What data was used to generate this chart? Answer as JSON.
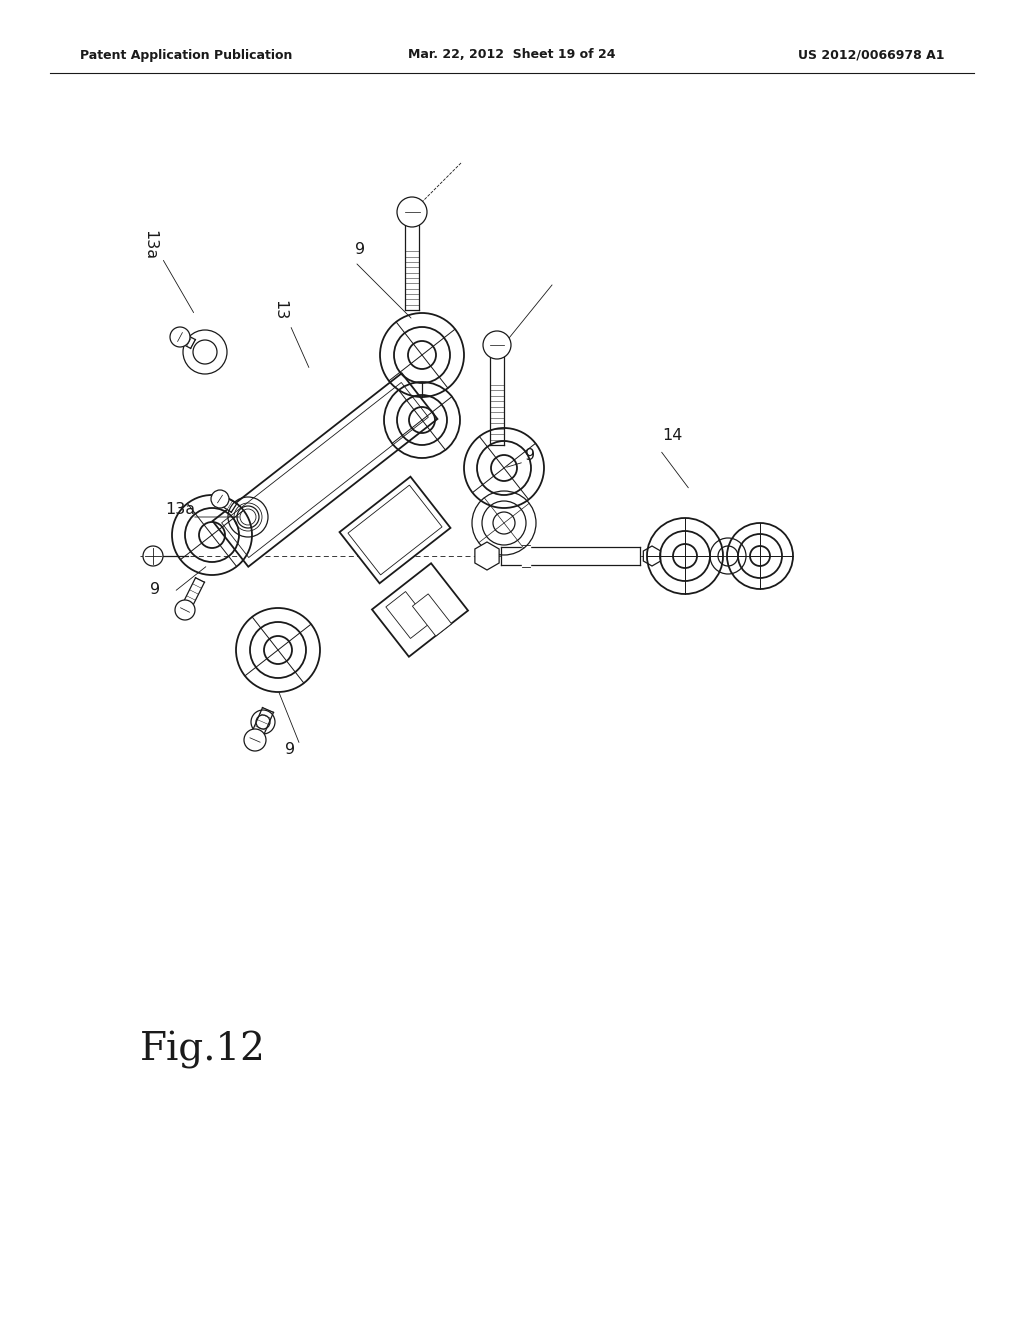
{
  "title_left": "Patent Application Publication",
  "title_mid": "Mar. 22, 2012  Sheet 19 of 24",
  "title_right": "US 2012/0066978 A1",
  "fig_label": "Fig.12",
  "background_color": "#ffffff",
  "line_color": "#1a1a1a",
  "lw_main": 1.3,
  "lw_med": 0.9,
  "lw_thin": 0.6,
  "header_fontsize": 9,
  "label_fontsize": 11,
  "fig_fontsize": 28
}
